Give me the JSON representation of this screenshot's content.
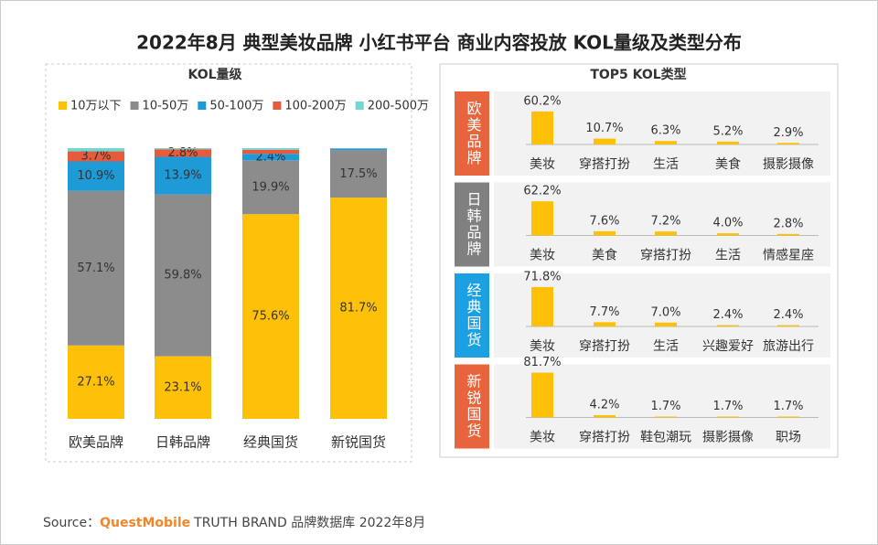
{
  "title": "2022年8月 典型美妆品牌 小红书平台 商业内容投放 KOL量级及类型分布",
  "right_title": "TOP5 KOL类型",
  "source": {
    "label": "Source：",
    "brand": "QuestMobile",
    "text": "TRUTH BRAND 品牌数据库 2022年8月"
  },
  "chart_data": [
    {
      "type": "stacked_bar",
      "title": "KOL量级",
      "categories": [
        "欧美品牌",
        "日韩品牌",
        "经典国货",
        "新锐国货"
      ],
      "ylim": [
        0,
        100
      ],
      "series": [
        {
          "name": "10万以下",
          "color": "#FFC107",
          "values": [
            27.1,
            23.1,
            75.6,
            81.7
          ],
          "value_labels": [
            "27.1%",
            "23.1%",
            "75.6%",
            "81.7%"
          ]
        },
        {
          "name": "10-50万",
          "color": "#8C8C8C",
          "values": [
            57.1,
            59.8,
            19.9,
            17.5
          ],
          "value_labels": [
            "57.1%",
            "59.8%",
            "19.9%",
            "17.5%"
          ]
        },
        {
          "name": "50-100万",
          "color": "#1E9AD6",
          "values": [
            10.9,
            13.9,
            2.4,
            0.6
          ],
          "value_labels": [
            "10.9%",
            "13.9%",
            "2.4%",
            null
          ]
        },
        {
          "name": "100-200万",
          "color": "#E55B3C",
          "values": [
            3.7,
            2.8,
            1.5,
            0.1
          ],
          "value_labels": [
            "3.7%",
            "2.8%",
            null,
            null
          ]
        },
        {
          "name": "200-500万",
          "color": "#72D6D2",
          "values": [
            1.2,
            0.4,
            0.6,
            0.1
          ],
          "value_labels": [
            null,
            null,
            null,
            null
          ]
        }
      ]
    },
    {
      "type": "bar",
      "title": "欧美品牌",
      "color": "#E8643C",
      "ylim": [
        0,
        100
      ],
      "categories": [
        "美妆",
        "穿搭打扮",
        "生活",
        "美食",
        "摄影摄像"
      ],
      "values": [
        60.2,
        10.7,
        6.3,
        5.2,
        2.9
      ],
      "value_labels": [
        "60.2%",
        "10.7%",
        "6.3%",
        "5.2%",
        "2.9%"
      ]
    },
    {
      "type": "bar",
      "title": "日韩品牌",
      "color": "#808080",
      "ylim": [
        0,
        100
      ],
      "categories": [
        "美妆",
        "美食",
        "穿搭打扮",
        "生活",
        "情感星座"
      ],
      "values": [
        62.2,
        7.6,
        7.2,
        4.0,
        2.8
      ],
      "value_labels": [
        "62.2%",
        "7.6%",
        "7.2%",
        "4.0%",
        "2.8%"
      ]
    },
    {
      "type": "bar",
      "title": "经典国货",
      "color": "#1BA1E2",
      "ylim": [
        0,
        100
      ],
      "categories": [
        "美妆",
        "穿搭打扮",
        "生活",
        "兴趣爱好",
        "旅游出行"
      ],
      "values": [
        71.8,
        7.7,
        7.0,
        2.4,
        2.4
      ],
      "value_labels": [
        "71.8%",
        "7.7%",
        "7.0%",
        "2.4%",
        "2.4%"
      ]
    },
    {
      "type": "bar",
      "title": "新锐国货",
      "color": "#E8643C",
      "ylim": [
        0,
        100
      ],
      "categories": [
        "美妆",
        "穿搭打扮",
        "鞋包潮玩",
        "摄影摄像",
        "职场"
      ],
      "values": [
        81.7,
        4.2,
        1.7,
        1.7,
        1.7
      ],
      "value_labels": [
        "81.7%",
        "4.2%",
        "1.7%",
        "1.7%",
        "1.7%"
      ]
    }
  ]
}
